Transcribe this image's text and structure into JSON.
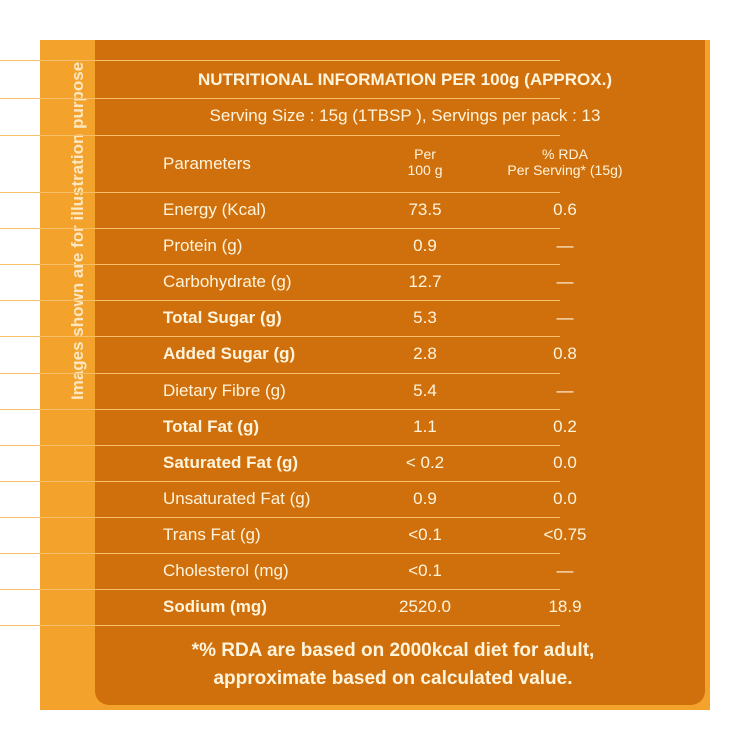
{
  "side_note": "Images shown are for illustration purpose",
  "header": {
    "title": "NUTRITIONAL INFORMATION PER 100g (APPROX.)",
    "serving": "Serving Size : 15g (1TBSP ),  Servings per pack : 13"
  },
  "table": {
    "columns": [
      [
        "Parameters"
      ],
      [
        "Per",
        "100 g"
      ],
      [
        "% RDA",
        "Per Serving* (15g)"
      ]
    ],
    "rows": [
      {
        "cells": [
          "Energy (Kcal)",
          "73.5",
          "0.6"
        ],
        "bold": false
      },
      {
        "cells": [
          "Protein (g)",
          "0.9",
          "—"
        ],
        "bold": false
      },
      {
        "cells": [
          "Carbohydrate (g)",
          "12.7",
          "—"
        ],
        "bold": false
      },
      {
        "cells": [
          "Total Sugar (g)",
          "5.3",
          "—"
        ],
        "bold": true
      },
      {
        "cells": [
          "Added Sugar (g)",
          "2.8",
          "0.8"
        ],
        "bold": true
      },
      {
        "cells": [
          "Dietary Fibre (g)",
          "5.4",
          "—"
        ],
        "bold": false
      },
      {
        "cells": [
          "Total Fat (g)",
          "1.1",
          "0.2"
        ],
        "bold": true
      },
      {
        "cells": [
          "Saturated Fat (g)",
          "< 0.2",
          "0.0"
        ],
        "bold": true
      },
      {
        "cells": [
          "Unsaturated Fat (g)",
          "0.9",
          "0.0"
        ],
        "bold": false
      },
      {
        "cells": [
          "Trans Fat (g)",
          "<0.1",
          "<0.75"
        ],
        "bold": false
      },
      {
        "cells": [
          "Cholesterol (mg)",
          "<0.1",
          "—"
        ],
        "bold": false
      },
      {
        "cells": [
          "Sodium (mg)",
          "2520.0",
          "18.9"
        ],
        "bold": true
      }
    ]
  },
  "footnote": [
    "*% RDA are based on 2000kcal  diet for adult,",
    "approximate based on calculated value."
  ]
}
